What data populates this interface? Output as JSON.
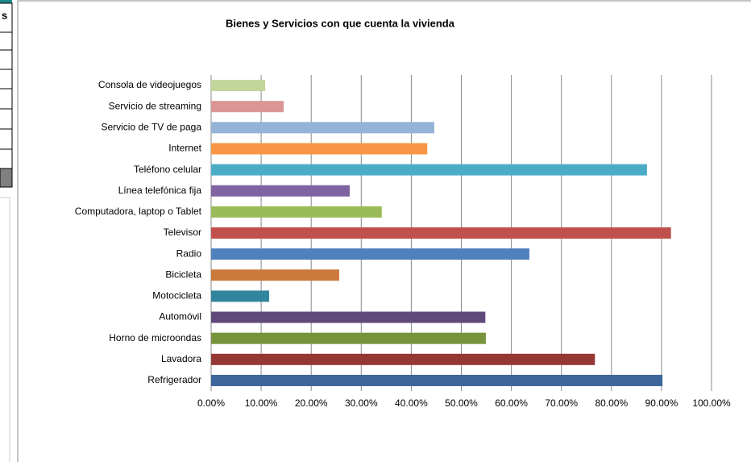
{
  "side_table": {
    "header": "s"
  },
  "chart_data": {
    "type": "barh",
    "title": "Bienes y Servicios con que cuenta la vivienda",
    "categories": [
      "Consola de videojuegos",
      "Servicio de streaming",
      "Servicio de TV de paga",
      "Internet",
      "Teléfono celular",
      "Línea telefónica fija",
      "Computadora, laptop o Tablet",
      "Televisor",
      "Radio",
      "Bicicleta",
      "Motocicleta",
      "Automóvil",
      "Horno de microondas",
      "Lavadora",
      "Refrigerador"
    ],
    "values": [
      10.8,
      14.5,
      44.6,
      43.2,
      87.1,
      27.7,
      34.1,
      91.9,
      63.6,
      25.6,
      11.6,
      54.8,
      54.9,
      76.7,
      90.2
    ],
    "colors": [
      "#c3d69b",
      "#d99694",
      "#95b3d7",
      "#f79646",
      "#4bacc6",
      "#8064a2",
      "#9bbb59",
      "#c0504d",
      "#4f81bd",
      "#cc7a3c",
      "#31859c",
      "#604a7b",
      "#77933c",
      "#953735",
      "#3c6599"
    ],
    "xlim": [
      0,
      100
    ],
    "xticks": [
      {
        "value": 0,
        "label": "0.00%"
      },
      {
        "value": 10,
        "label": "10.00%"
      },
      {
        "value": 20,
        "label": "20.00%"
      },
      {
        "value": 30,
        "label": "30.00%"
      },
      {
        "value": 40,
        "label": "40.00%"
      },
      {
        "value": 50,
        "label": "50.00%"
      },
      {
        "value": 60,
        "label": "60.00%"
      },
      {
        "value": 70,
        "label": "70.00%"
      },
      {
        "value": 80,
        "label": "80.00%"
      },
      {
        "value": 90,
        "label": "90.00%"
      },
      {
        "value": 100,
        "label": "100.00%"
      }
    ],
    "grid": true
  }
}
